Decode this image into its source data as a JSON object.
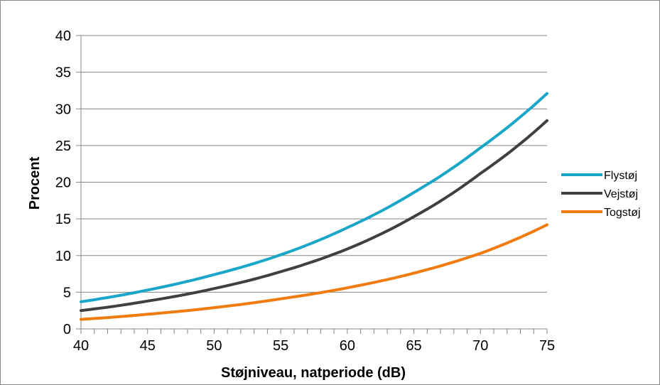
{
  "chart_data": {
    "type": "line",
    "title": "",
    "xlabel": "Støjniveau, natperiode (dB)",
    "ylabel": "Procent",
    "xlim": [
      40,
      75
    ],
    "ylim": [
      0,
      40
    ],
    "x_ticks": [
      "40",
      "45",
      "50",
      "55",
      "60",
      "65",
      "70",
      "75"
    ],
    "y_ticks": [
      "0",
      "5",
      "10",
      "15",
      "20",
      "25",
      "30",
      "35",
      "40"
    ],
    "grid": "horizontal",
    "legend_position": "right",
    "x": [
      40,
      45,
      50,
      55,
      60,
      65,
      70,
      75
    ],
    "series": [
      {
        "name": "Flystøj",
        "color": "#1aa6c8",
        "values": [
          3.7,
          5.3,
          7.4,
          10.1,
          13.8,
          18.6,
          24.7,
          32.1
        ]
      },
      {
        "name": "Vejstøj",
        "color": "#404040",
        "values": [
          2.5,
          3.8,
          5.5,
          7.8,
          10.9,
          15.3,
          21.2,
          28.4
        ]
      },
      {
        "name": "Togstøj",
        "color": "#f07c0f",
        "values": [
          1.3,
          2.0,
          2.9,
          4.1,
          5.6,
          7.6,
          10.3,
          14.2
        ]
      }
    ]
  }
}
